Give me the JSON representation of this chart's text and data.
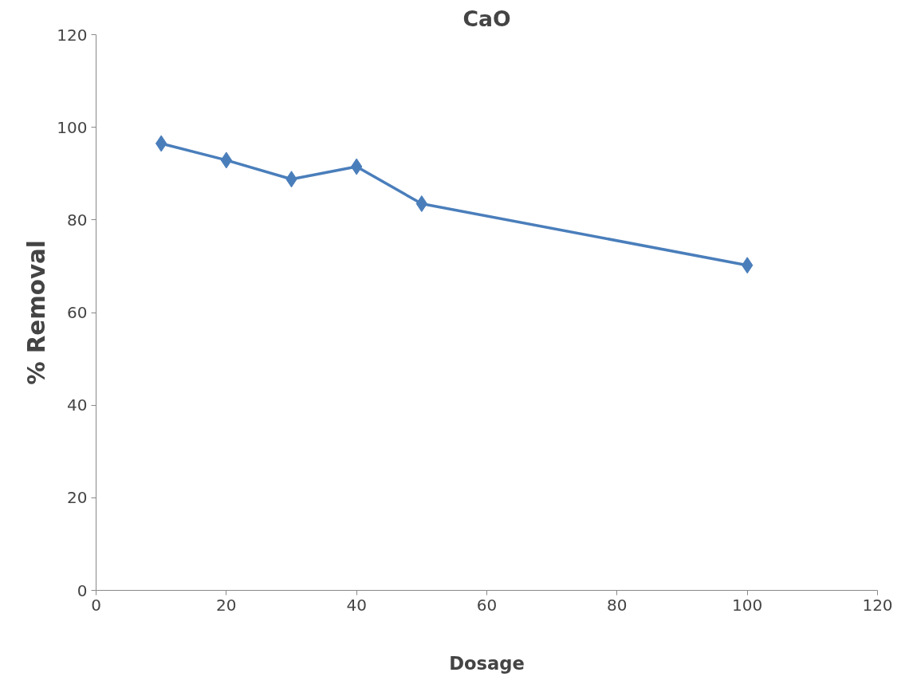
{
  "chart_data": {
    "type": "line",
    "title": "CaO",
    "xlabel": "Dosage",
    "ylabel": "% Removal",
    "x": [
      10,
      20,
      30,
      40,
      50,
      100
    ],
    "series": [
      {
        "color": "#4a7ebb",
        "values": [
          96.5,
          92.9,
          88.8,
          91.5,
          83.5,
          70.2
        ]
      }
    ],
    "xlim": [
      0,
      120
    ],
    "xticks": [
      0,
      20,
      40,
      60,
      80,
      100,
      120
    ],
    "ylim": [
      0,
      120
    ],
    "yticks": [
      0,
      20,
      40,
      60,
      80,
      100,
      120
    ],
    "marker": "diamond",
    "line_style": "solid",
    "grid": false
  }
}
